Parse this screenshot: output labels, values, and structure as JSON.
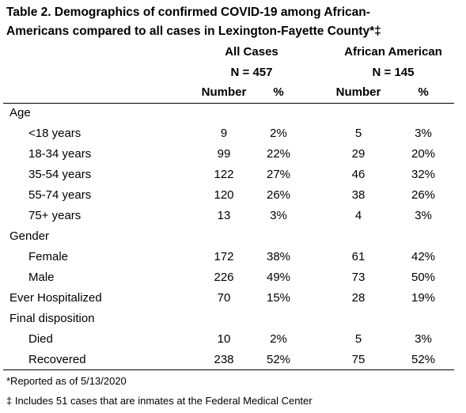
{
  "table": {
    "title": [
      "Table 2. Demographics of confirmed COVID-19 among African-",
      "Americans compared to all cases in Lexington-Fayette County*‡"
    ],
    "groups": [
      {
        "name": "All Cases",
        "n": "N = 457"
      },
      {
        "name": "African American",
        "n": "N = 145"
      }
    ],
    "column_headers": [
      "Number",
      "%",
      "Number",
      "%"
    ],
    "rows": [
      {
        "label": "Age",
        "children": [
          {
            "label": "<18 years",
            "cells": [
              9,
              "2%",
              5,
              "3%"
            ]
          },
          {
            "label": "18-34 years",
            "cells": [
              99,
              "22%",
              29,
              "20%"
            ]
          },
          {
            "label": "35-54 years",
            "cells": [
              122,
              "27%",
              46,
              "32%"
            ]
          },
          {
            "label": "55-74 years",
            "cells": [
              120,
              "26%",
              38,
              "26%"
            ]
          },
          {
            "label": "75+ years",
            "cells": [
              13,
              "3%",
              4,
              "3%"
            ]
          }
        ]
      },
      {
        "label": "Gender",
        "children": [
          {
            "label": "Female",
            "cells": [
              172,
              "38%",
              61,
              "42%"
            ]
          },
          {
            "label": "Male",
            "cells": [
              226,
              "49%",
              73,
              "50%"
            ]
          }
        ]
      },
      {
        "label": "Ever Hospitalized",
        "cells": [
          70,
          "15%",
          28,
          "19%"
        ]
      },
      {
        "label": "Final disposition",
        "children": [
          {
            "label": "Died",
            "cells": [
              10,
              "2%",
              5,
              "3%"
            ]
          },
          {
            "label": "Recovered",
            "cells": [
              238,
              "52%",
              75,
              "52%"
            ]
          }
        ]
      }
    ],
    "footnotes": [
      "*Reported as of 5/13/2020",
      "‡ Includes 51 cases that are inmates at the Federal Medical Center"
    ]
  }
}
